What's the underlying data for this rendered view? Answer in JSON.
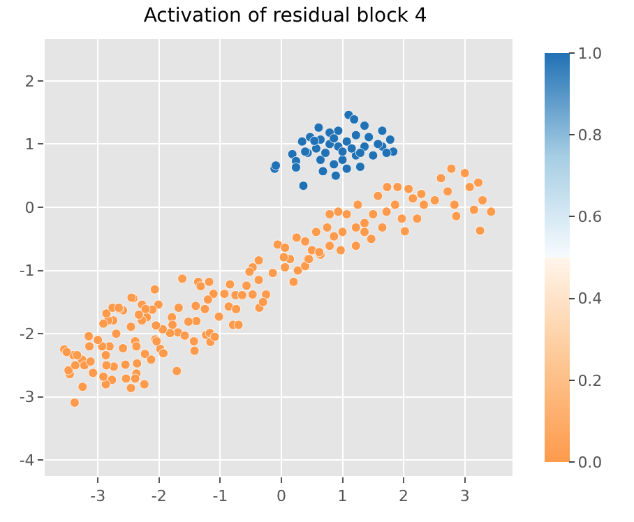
{
  "chart_data": {
    "type": "scatter",
    "title": "Activation of residual block 4",
    "xlim": [
      -3.87,
      3.78
    ],
    "ylim": [
      -4.25,
      2.66
    ],
    "xticks": [
      -3,
      -2,
      -1,
      0,
      1,
      2,
      3
    ],
    "yticks": [
      -4,
      -3,
      -2,
      -1,
      0,
      1,
      2
    ],
    "clim": [
      0,
      1
    ],
    "cticks": [
      {
        "value": 0,
        "label": "0.0"
      },
      {
        "value": 0.2,
        "label": "0.2"
      },
      {
        "value": 0.4,
        "label": "0.4"
      },
      {
        "value": 0.6,
        "label": "0.6"
      },
      {
        "value": 0.8,
        "label": "0.8"
      },
      {
        "value": 1,
        "label": "1.0"
      }
    ],
    "grid": true,
    "marker": "circle",
    "series": [
      {
        "x": [
          -0.11,
          -0.09,
          0.36,
          0.18,
          0.24,
          0.24,
          0.34,
          0.47,
          0.61,
          0.68,
          0.89,
          1.1,
          1.19,
          1.29,
          1.83,
          1.78,
          1.65,
          1.36,
          0.93,
          0.79,
          0.43,
          0.57,
          0.64,
          0.86,
          1.0,
          1.07,
          1.22,
          1.5,
          1.65,
          1.43,
          1.22,
          1.07,
          0.93,
          0.79,
          0.72,
          1.36,
          1.58,
          1.72,
          1.15,
          1.29,
          1.0,
          0.86,
          0.64,
          0.54,
          0.39
        ],
        "values": [
          0.61,
          0.66,
          0.34,
          0.84,
          0.73,
          0.63,
          1.04,
          1.11,
          1.26,
          0.57,
          0.5,
          1.46,
          1.39,
          0.64,
          0.88,
          1.07,
          1.21,
          1.29,
          1.21,
          1.18,
          0.86,
          0.93,
          0.75,
          0.68,
          0.75,
          0.61,
          0.82,
          0.82,
          0.96,
          1.11,
          1.14,
          1.04,
          0.96,
          1.0,
          0.86,
          0.96,
          1.0,
          0.86,
          0.93,
          0.86,
          0.88,
          1.09,
          1.07,
          1.05,
          0.88
        ],
        "cvalues": [
          1,
          1,
          1,
          1,
          1,
          1,
          1,
          1,
          1,
          1,
          1,
          1,
          1,
          1,
          1,
          1,
          1,
          1,
          1,
          1,
          1,
          1,
          1,
          1,
          1,
          1,
          1,
          1,
          1,
          1,
          1,
          1,
          1,
          1,
          1,
          1,
          1,
          1,
          1,
          1,
          1,
          1,
          1,
          1,
          1
        ]
      },
      {
        "x": [
          3.43,
          3.25,
          3.22,
          2.78,
          2.61,
          3.0,
          3.08,
          2.86,
          3.15,
          2.72,
          3.29,
          2.83,
          2.51,
          2.29,
          2.08,
          2.02,
          2.22,
          2.33,
          2.15,
          1.9,
          1.73,
          1.58,
          1.86,
          1.97,
          1.65,
          1.72,
          1.5,
          1.36,
          1.47,
          1.22,
          1.25,
          1.07,
          0.93,
          0.79,
          0.75,
          0.86,
          0.97,
          1.0,
          0.79,
          0.57,
          0.5,
          0.39,
          0.25,
          0.14,
          -0.06,
          0.06,
          0.43,
          0.64,
          -0.37,
          1.22,
          1.36,
          0.04,
          0.06,
          0.27,
          0.2,
          0.39,
          0.45,
          0.62,
          -0.14,
          -0.47,
          -0.52,
          -0.37,
          -0.57,
          -0.84,
          -0.93,
          -0.75,
          -0.64,
          -0.47,
          -0.25,
          -0.36,
          -0.3,
          -0.86,
          -0.74,
          -0.79,
          -0.7,
          -1.02,
          -1.11,
          -1.2,
          -1.18,
          -1.36,
          -1.32,
          -1.62,
          -1.25,
          -1.4,
          -1.39,
          -1.52,
          -1.68,
          -1.79,
          -1.78,
          -1.69,
          -1.58,
          -1.43,
          -1.42,
          -1.23,
          -1.17,
          -1.16,
          -1.09,
          -1.71,
          -1.82,
          -1.94,
          -1.98,
          -1.92,
          -2.05,
          -2.01,
          -2.07,
          -2.11,
          -2.2,
          -2.23,
          -2.13,
          -2.39,
          -2.37,
          -2.36,
          -2.37,
          -2.39,
          -2.24,
          -2.54,
          -2.46,
          -2.55,
          -2.59,
          -2.46,
          -2.28,
          -2.28,
          -2.22,
          -2.33,
          -2.42,
          -2.45,
          -2.59,
          -2.65,
          -2.7,
          -2.75,
          -2.83,
          -2.91,
          -2.86,
          -2.76,
          -2.66,
          -2.81,
          -2.74,
          -2.77,
          -2.87,
          -2.91,
          -2.86,
          -2.87,
          -2.93,
          -3.0,
          -3.15,
          -3.14,
          -3.25,
          -3.38,
          -3.46,
          -3.48,
          -3.37,
          -3.26,
          -3.22,
          -3.12,
          -3.08,
          -3.4,
          -3.34,
          -3.55,
          -3.51,
          -2.06,
          -2.04,
          -1.93
        ],
        "values": [
          -0.07,
          -0.37,
          0.39,
          0.61,
          0.46,
          0.54,
          0.32,
          -0.14,
          -0.04,
          0.25,
          0.11,
          0.04,
          0.11,
          0.21,
          0.29,
          -0.38,
          -0.18,
          0.04,
          0.14,
          0.32,
          0.32,
          0.18,
          0.04,
          -0.18,
          -0.32,
          -0.07,
          -0.11,
          -0.25,
          -0.5,
          -0.32,
          0.04,
          -0.11,
          -0.07,
          -0.11,
          -0.32,
          -0.46,
          -0.68,
          -0.39,
          -0.61,
          -0.39,
          -0.68,
          -0.54,
          -0.48,
          -0.82,
          -0.59,
          -0.64,
          -0.82,
          -0.75,
          -0.84,
          -0.61,
          -0.39,
          -0.79,
          -0.95,
          -1.0,
          -1.18,
          -0.93,
          -0.82,
          -0.71,
          -1.04,
          -0.95,
          -1.02,
          -1.15,
          -1.24,
          -1.22,
          -1.37,
          -1.39,
          -1.39,
          -1.38,
          -1.38,
          -1.59,
          -1.5,
          -1.57,
          -1.61,
          -1.86,
          -1.86,
          -1.73,
          -1.37,
          -1.46,
          -1.18,
          -1.18,
          -1.25,
          -1.13,
          -1.61,
          -1.56,
          -1.8,
          -1.81,
          -1.59,
          -1.74,
          -1.86,
          -1.98,
          -2.03,
          -2.12,
          -2.27,
          -2.02,
          -1.99,
          -2.13,
          -2.05,
          -2.59,
          -1.99,
          -1.93,
          -2.24,
          -2.31,
          -1.87,
          -1.54,
          -1.3,
          -1.62,
          -1.74,
          -2.32,
          -2.41,
          -2.12,
          -2.2,
          -2.47,
          -2.63,
          -2.71,
          -2.8,
          -2.71,
          -2.86,
          -2.49,
          -2.23,
          -1.89,
          -1.79,
          -1.54,
          -1.61,
          -1.7,
          -1.44,
          -1.43,
          -1.63,
          -1.61,
          -2.0,
          -1.79,
          -1.79,
          -1.84,
          -1.68,
          -1.59,
          -1.59,
          -2.2,
          -2.52,
          -2.73,
          -2.8,
          -2.68,
          -2.5,
          -2.34,
          -2.2,
          -2.1,
          -2.04,
          -2.2,
          -2.84,
          -3.09,
          -2.64,
          -2.58,
          -2.5,
          -2.41,
          -2.5,
          -2.44,
          -2.62,
          -2.34,
          -2.34,
          -2.25,
          -2.29,
          -2.09,
          -2.12,
          -2.31
        ],
        "cvalues": [
          0,
          0,
          0,
          0,
          0,
          0,
          0,
          0,
          0,
          0,
          0,
          0,
          0,
          0,
          0,
          0,
          0,
          0,
          0,
          0,
          0,
          0,
          0,
          0,
          0,
          0,
          0,
          0,
          0,
          0,
          0,
          0,
          0,
          0,
          0,
          0,
          0,
          0,
          0,
          0,
          0,
          0,
          0,
          0,
          0,
          0,
          0,
          0,
          0,
          0,
          0,
          0,
          0,
          0,
          0,
          0,
          0,
          0,
          0,
          0,
          0,
          0,
          0,
          0,
          0,
          0,
          0,
          0,
          0,
          0,
          0,
          0,
          0,
          0,
          0,
          0,
          0,
          0,
          0,
          0,
          0,
          0,
          0,
          0,
          0,
          0,
          0,
          0,
          0,
          0,
          0,
          0,
          0,
          0,
          0,
          0,
          0,
          0,
          0,
          0,
          0,
          0,
          0,
          0,
          0,
          0,
          0,
          0,
          0,
          0,
          0,
          0,
          0,
          0,
          0,
          0,
          0,
          0,
          0,
          0,
          0,
          0,
          0,
          0,
          0,
          0,
          0,
          0,
          0,
          0,
          0,
          0,
          0,
          0,
          0,
          0,
          0,
          0,
          0,
          0,
          0,
          0,
          0,
          0,
          0,
          0,
          0,
          0,
          0,
          0,
          0,
          0,
          0,
          0,
          0,
          0,
          0,
          0,
          0,
          0,
          0,
          0
        ]
      }
    ]
  }
}
